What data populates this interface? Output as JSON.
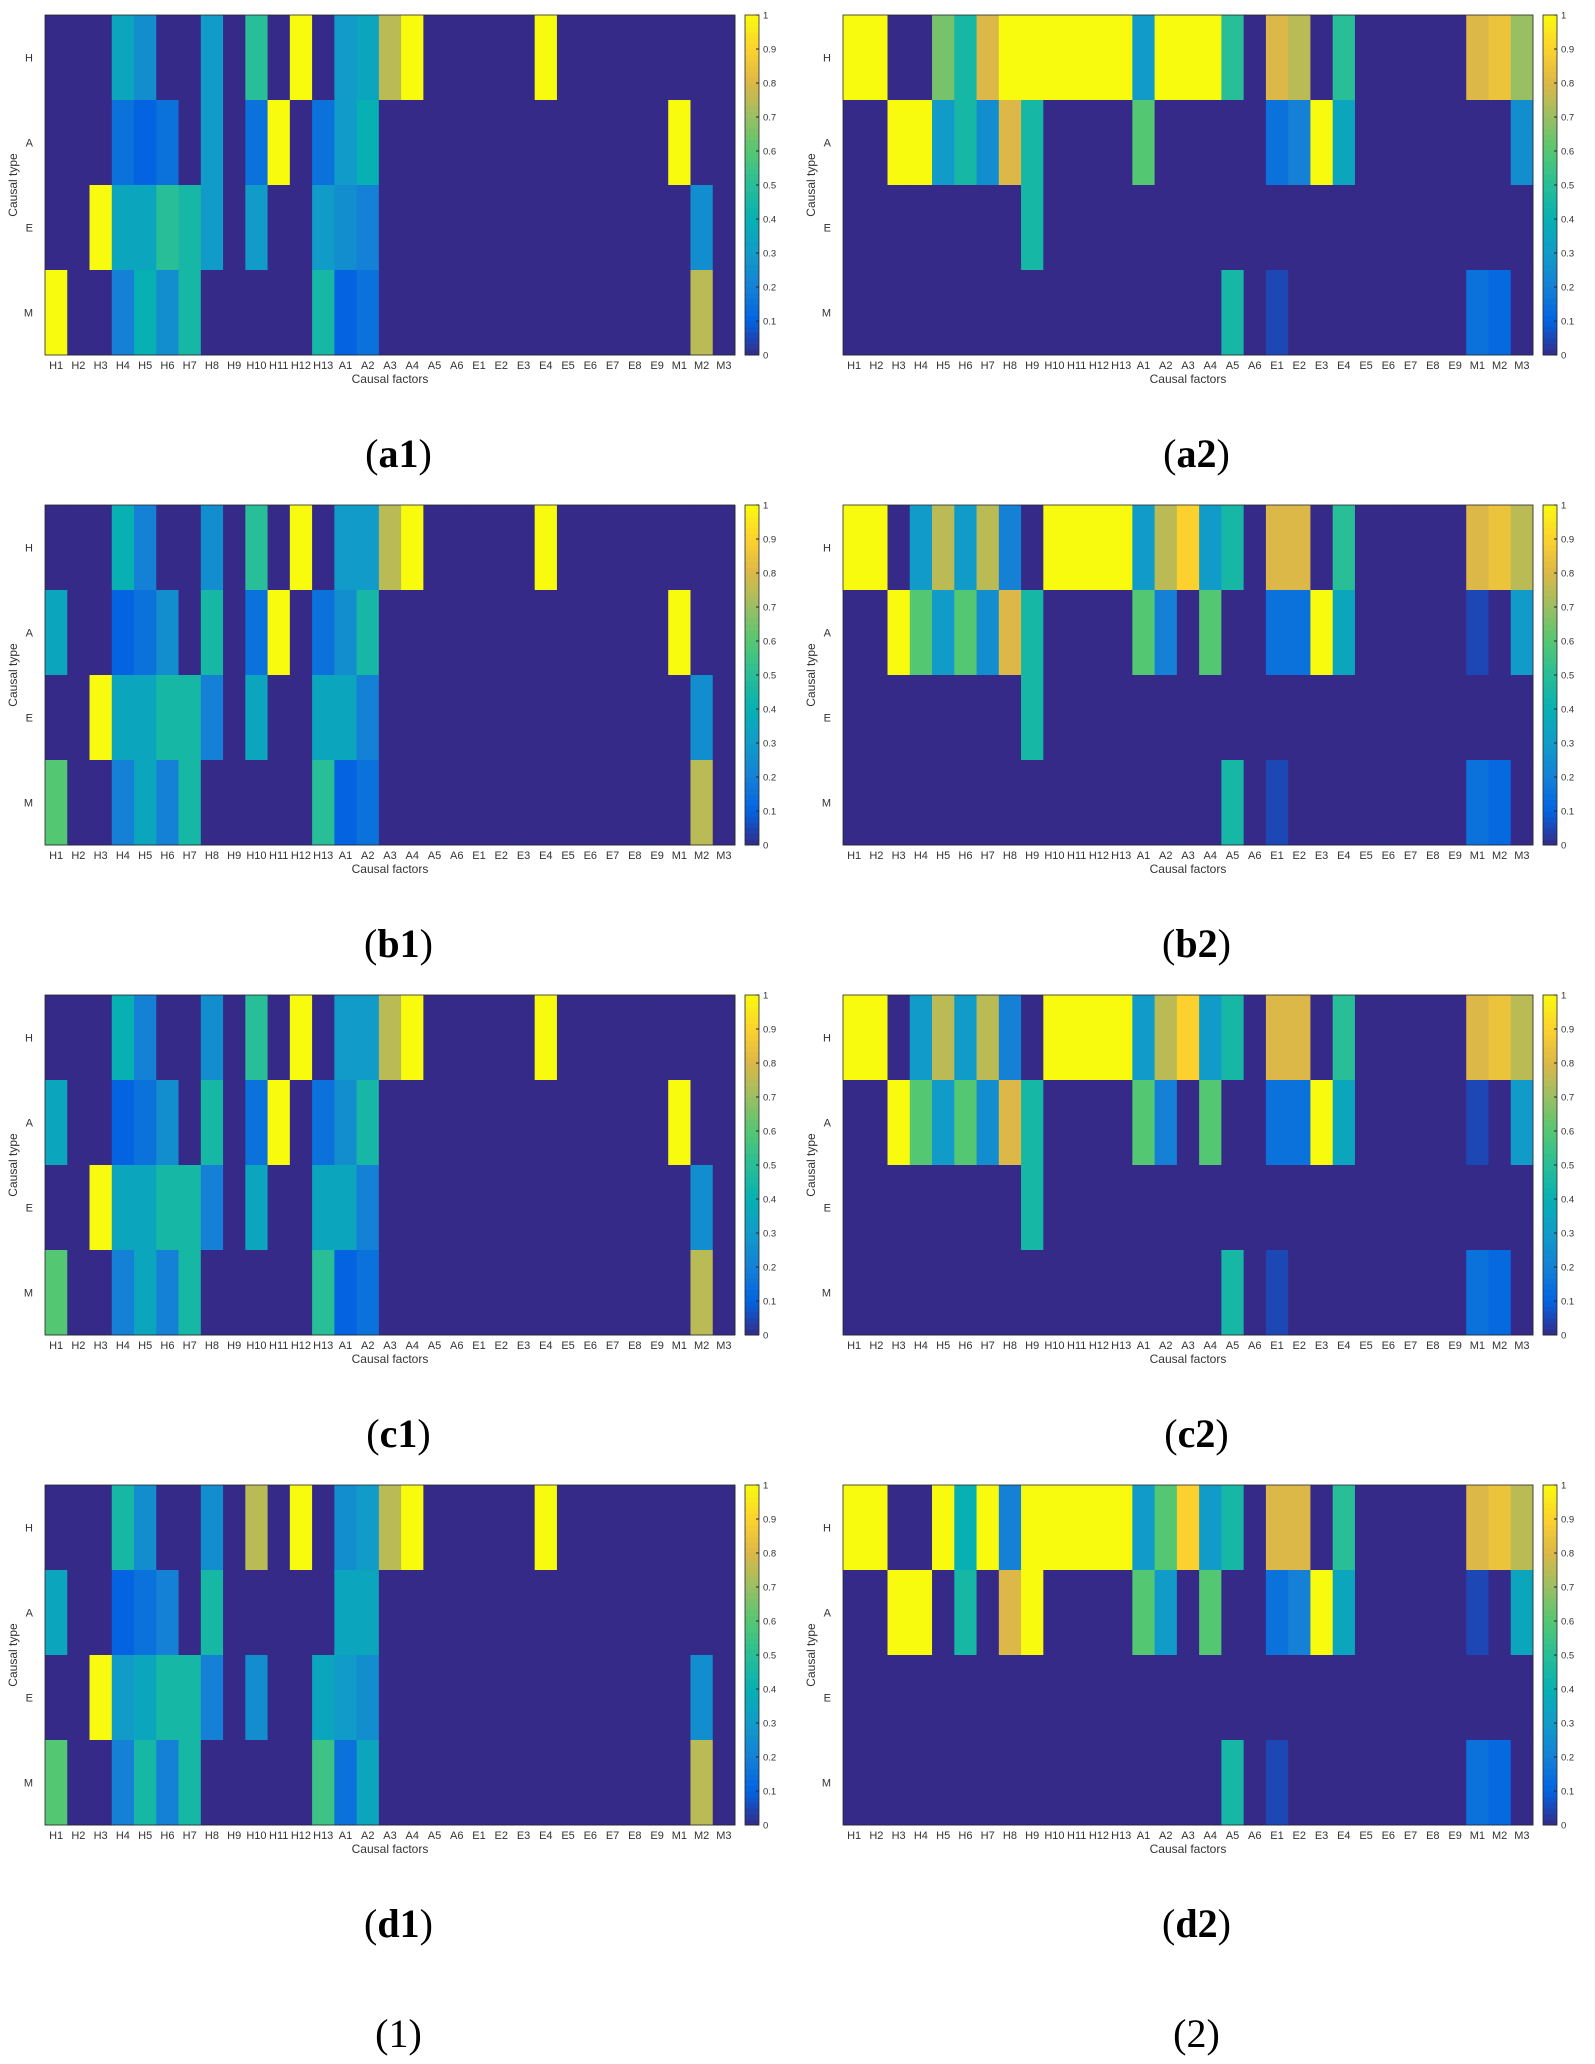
{
  "common": {
    "x_factors": [
      "H1",
      "H2",
      "H3",
      "H4",
      "H5",
      "H6",
      "H7",
      "H8",
      "H9",
      "H10",
      "H11",
      "H12",
      "H13",
      "A1",
      "A2",
      "A3",
      "A4",
      "A5",
      "A6",
      "E1",
      "E2",
      "E3",
      "E4",
      "E5",
      "E6",
      "E7",
      "E8",
      "E9",
      "M1",
      "M2",
      "M3"
    ],
    "y_types": [
      "H",
      "A",
      "E",
      "M"
    ],
    "xlabel": "Causal factors",
    "ylabel": "Causal type",
    "colorbar_ticks": [
      "0",
      "0.1",
      "0.2",
      "0.3",
      "0.4",
      "0.5",
      "0.6",
      "0.7",
      "0.8",
      "0.9",
      "1"
    ]
  },
  "column_labels": {
    "left": "(1)",
    "right": "(2)"
  },
  "chart_data": [
    {
      "type": "heatmap",
      "panel_label": "a1",
      "zlim": [
        0,
        1
      ],
      "rows": {
        "H": [
          0,
          0,
          0,
          0.35,
          0.25,
          0,
          0,
          0.3,
          0,
          0.5,
          0,
          1,
          0,
          0.3,
          0.35,
          0.75,
          1,
          0,
          0,
          0,
          0,
          0,
          1,
          0,
          0,
          0,
          0,
          0,
          0,
          0,
          0
        ],
        "A": [
          0,
          0,
          0,
          0.15,
          0.1,
          0.15,
          0,
          0.3,
          0,
          0.15,
          1,
          0,
          0.15,
          0.3,
          0.4,
          0,
          0,
          0,
          0,
          0,
          0,
          0,
          0,
          0,
          0,
          0,
          0,
          0,
          1,
          0,
          0
        ],
        "E": [
          0,
          0,
          1,
          0.35,
          0.35,
          0.5,
          0.45,
          0.3,
          0,
          0.3,
          0,
          0,
          0.3,
          0.25,
          0.2,
          0,
          0,
          0,
          0,
          0,
          0,
          0,
          0,
          0,
          0,
          0,
          0,
          0,
          0,
          0.25,
          0
        ],
        "M": [
          1,
          0,
          0,
          0.2,
          0.4,
          0.25,
          0.45,
          0,
          0,
          0,
          0,
          0,
          0.45,
          0.1,
          0.15,
          0,
          0,
          0,
          0,
          0,
          0,
          0,
          0,
          0,
          0,
          0,
          0,
          0,
          0,
          0.75,
          0
        ]
      }
    },
    {
      "type": "heatmap",
      "panel_label": "a2",
      "zlim": [
        0,
        1
      ],
      "rows": {
        "H": [
          1,
          1,
          0,
          0,
          0.65,
          0.45,
          0.8,
          1,
          1,
          1,
          1,
          1,
          1,
          0.3,
          1,
          1,
          1,
          0.5,
          0,
          0.8,
          0.75,
          0,
          0.5,
          0,
          0,
          0,
          0,
          0,
          0.8,
          0.85,
          0.7
        ],
        "A": [
          0,
          0,
          1,
          1,
          0.3,
          0.45,
          0.25,
          0.8,
          0.45,
          0,
          0,
          0,
          0,
          0.6,
          0,
          0,
          0,
          0,
          0,
          0.15,
          0.2,
          1,
          0.35,
          0,
          0,
          0,
          0,
          0,
          0,
          0,
          0.25
        ],
        "E": [
          0,
          0,
          0,
          0,
          0,
          0,
          0,
          0,
          0.45,
          0,
          0,
          0,
          0,
          0,
          0,
          0,
          0,
          0,
          0,
          0,
          0,
          0,
          0,
          0,
          0,
          0,
          0,
          0,
          0,
          0,
          0
        ],
        "M": [
          0,
          0,
          0,
          0,
          0,
          0,
          0,
          0,
          0,
          0,
          0,
          0,
          0,
          0,
          0,
          0,
          0,
          0.45,
          0,
          0.05,
          0,
          0,
          0,
          0,
          0,
          0,
          0,
          0,
          0.15,
          0.12,
          0
        ]
      }
    },
    {
      "type": "heatmap",
      "panel_label": "b1",
      "zlim": [
        0,
        1
      ],
      "rows": {
        "H": [
          0,
          0,
          0,
          0.4,
          0.2,
          0,
          0,
          0.25,
          0,
          0.5,
          0,
          1,
          0,
          0.3,
          0.3,
          0.75,
          1,
          0,
          0,
          0,
          0,
          0,
          1,
          0,
          0,
          0,
          0,
          0,
          0,
          0,
          0
        ],
        "A": [
          0.35,
          0,
          0,
          0.1,
          0.15,
          0.25,
          0,
          0.45,
          0,
          0.15,
          1,
          0,
          0.15,
          0.25,
          0.45,
          0,
          0,
          0,
          0,
          0,
          0,
          0,
          0,
          0,
          0,
          0,
          0,
          0,
          1,
          0,
          0
        ],
        "E": [
          0,
          0,
          1,
          0.35,
          0.35,
          0.45,
          0.45,
          0.2,
          0,
          0.35,
          0,
          0,
          0.35,
          0.35,
          0.2,
          0,
          0,
          0,
          0,
          0,
          0,
          0,
          0,
          0,
          0,
          0,
          0,
          0,
          0,
          0.25,
          0
        ],
        "M": [
          0.6,
          0,
          0,
          0.2,
          0.35,
          0.2,
          0.45,
          0,
          0,
          0,
          0,
          0,
          0.5,
          0.1,
          0.15,
          0,
          0,
          0,
          0,
          0,
          0,
          0,
          0,
          0,
          0,
          0,
          0,
          0,
          0,
          0.75,
          0
        ]
      }
    },
    {
      "type": "heatmap",
      "panel_label": "b2",
      "zlim": [
        0,
        1
      ],
      "rows": {
        "H": [
          1,
          1,
          0,
          0.3,
          0.75,
          0.3,
          0.75,
          0.2,
          0,
          1,
          1,
          1,
          1,
          0.3,
          0.75,
          0.9,
          0.3,
          0.45,
          0,
          0.8,
          0.8,
          0,
          0.5,
          0,
          0,
          0,
          0,
          0,
          0.8,
          0.85,
          0.75
        ],
        "A": [
          0,
          0,
          1,
          0.6,
          0.3,
          0.6,
          0.25,
          0.8,
          0.45,
          0,
          0,
          0,
          0,
          0.6,
          0.2,
          0,
          0.6,
          0,
          0,
          0.15,
          0.15,
          1,
          0.35,
          0,
          0,
          0,
          0,
          0,
          0.05,
          0,
          0.3
        ],
        "E": [
          0,
          0,
          0,
          0,
          0,
          0,
          0,
          0,
          0.45,
          0,
          0,
          0,
          0,
          0,
          0,
          0,
          0,
          0,
          0,
          0,
          0,
          0,
          0,
          0,
          0,
          0,
          0,
          0,
          0,
          0,
          0
        ],
        "M": [
          0,
          0,
          0,
          0,
          0,
          0,
          0,
          0,
          0,
          0,
          0,
          0,
          0,
          0,
          0,
          0,
          0,
          0.45,
          0,
          0.05,
          0,
          0,
          0,
          0,
          0,
          0,
          0,
          0,
          0.15,
          0.12,
          0
        ]
      }
    },
    {
      "type": "heatmap",
      "panel_label": "c1",
      "zlim": [
        0,
        1
      ],
      "rows": {
        "H": [
          0,
          0,
          0,
          0.4,
          0.2,
          0,
          0,
          0.25,
          0,
          0.5,
          0,
          1,
          0,
          0.3,
          0.3,
          0.75,
          1,
          0,
          0,
          0,
          0,
          0,
          1,
          0,
          0,
          0,
          0,
          0,
          0,
          0,
          0
        ],
        "A": [
          0.35,
          0,
          0,
          0.1,
          0.15,
          0.25,
          0,
          0.45,
          0,
          0.15,
          1,
          0,
          0.15,
          0.25,
          0.45,
          0,
          0,
          0,
          0,
          0,
          0,
          0,
          0,
          0,
          0,
          0,
          0,
          0,
          1,
          0,
          0
        ],
        "E": [
          0,
          0,
          1,
          0.35,
          0.35,
          0.45,
          0.45,
          0.2,
          0,
          0.35,
          0,
          0,
          0.35,
          0.35,
          0.2,
          0,
          0,
          0,
          0,
          0,
          0,
          0,
          0,
          0,
          0,
          0,
          0,
          0,
          0,
          0.25,
          0
        ],
        "M": [
          0.6,
          0,
          0,
          0.2,
          0.35,
          0.2,
          0.45,
          0,
          0,
          0,
          0,
          0,
          0.5,
          0.1,
          0.15,
          0,
          0,
          0,
          0,
          0,
          0,
          0,
          0,
          0,
          0,
          0,
          0,
          0,
          0,
          0.75,
          0
        ]
      }
    },
    {
      "type": "heatmap",
      "panel_label": "c2",
      "zlim": [
        0,
        1
      ],
      "rows": {
        "H": [
          1,
          1,
          0,
          0.3,
          0.75,
          0.3,
          0.75,
          0.2,
          0,
          1,
          1,
          1,
          1,
          0.3,
          0.75,
          0.9,
          0.3,
          0.45,
          0,
          0.8,
          0.8,
          0,
          0.5,
          0,
          0,
          0,
          0,
          0,
          0.8,
          0.85,
          0.75
        ],
        "A": [
          0,
          0,
          1,
          0.6,
          0.3,
          0.6,
          0.25,
          0.8,
          0.45,
          0,
          0,
          0,
          0,
          0.6,
          0.2,
          0,
          0.6,
          0,
          0,
          0.15,
          0.15,
          1,
          0.35,
          0,
          0,
          0,
          0,
          0,
          0.05,
          0,
          0.3
        ],
        "E": [
          0,
          0,
          0,
          0,
          0,
          0,
          0,
          0,
          0.45,
          0,
          0,
          0,
          0,
          0,
          0,
          0,
          0,
          0,
          0,
          0,
          0,
          0,
          0,
          0,
          0,
          0,
          0,
          0,
          0,
          0,
          0
        ],
        "M": [
          0,
          0,
          0,
          0,
          0,
          0,
          0,
          0,
          0,
          0,
          0,
          0,
          0,
          0,
          0,
          0,
          0,
          0.45,
          0,
          0.05,
          0,
          0,
          0,
          0,
          0,
          0,
          0,
          0,
          0.15,
          0.12,
          0
        ]
      }
    },
    {
      "type": "heatmap",
      "panel_label": "d1",
      "zlim": [
        0,
        1
      ],
      "rows": {
        "H": [
          0,
          0,
          0,
          0.45,
          0.25,
          0,
          0,
          0.25,
          0,
          0.75,
          0,
          1,
          0,
          0.25,
          0.3,
          0.75,
          1,
          0,
          0,
          0,
          0,
          0,
          1,
          0,
          0,
          0,
          0,
          0,
          0,
          0,
          0
        ],
        "A": [
          0.35,
          0,
          0,
          0.1,
          0.15,
          0.2,
          0,
          0.45,
          0,
          0,
          0,
          0,
          0,
          0.35,
          0.35,
          0,
          0,
          0,
          0,
          0,
          0,
          0,
          0,
          0,
          0,
          0,
          0,
          0,
          0,
          0,
          0
        ],
        "E": [
          0,
          0,
          1,
          0.3,
          0.35,
          0.45,
          0.45,
          0.2,
          0,
          0.25,
          0,
          0,
          0.35,
          0.3,
          0.25,
          0,
          0,
          0,
          0,
          0,
          0,
          0,
          0,
          0,
          0,
          0,
          0,
          0,
          0,
          0.25,
          0
        ],
        "M": [
          0.6,
          0,
          0,
          0.2,
          0.45,
          0.2,
          0.45,
          0,
          0,
          0,
          0,
          0,
          0.55,
          0.15,
          0.35,
          0,
          0,
          0,
          0,
          0,
          0,
          0,
          0,
          0,
          0,
          0,
          0,
          0,
          0,
          0.75,
          0
        ]
      }
    },
    {
      "type": "heatmap",
      "panel_label": "d2",
      "zlim": [
        0,
        1
      ],
      "rows": {
        "H": [
          1,
          1,
          0,
          0,
          1,
          0.4,
          1,
          0.2,
          1,
          1,
          1,
          1,
          1,
          0.3,
          0.6,
          0.9,
          0.3,
          0.45,
          0,
          0.8,
          0.8,
          0,
          0.5,
          0,
          0,
          0,
          0,
          0,
          0.8,
          0.85,
          0.75
        ],
        "A": [
          0,
          0,
          1,
          1,
          0,
          0.45,
          0,
          0.8,
          1,
          0,
          0,
          0,
          0,
          0.6,
          0.3,
          0,
          0.6,
          0,
          0,
          0.15,
          0.2,
          1,
          0.35,
          0,
          0,
          0,
          0,
          0,
          0.05,
          0,
          0.35
        ],
        "E": [
          0,
          0,
          0,
          0,
          0,
          0,
          0,
          0,
          0,
          0,
          0,
          0,
          0,
          0,
          0,
          0,
          0,
          0,
          0,
          0,
          0,
          0,
          0,
          0,
          0,
          0,
          0,
          0,
          0,
          0,
          0
        ],
        "M": [
          0,
          0,
          0,
          0,
          0,
          0,
          0,
          0,
          0,
          0,
          0,
          0,
          0,
          0,
          0,
          0,
          0,
          0.45,
          0,
          0.05,
          0,
          0,
          0,
          0,
          0,
          0,
          0,
          0,
          0.15,
          0.12,
          0
        ]
      }
    }
  ]
}
